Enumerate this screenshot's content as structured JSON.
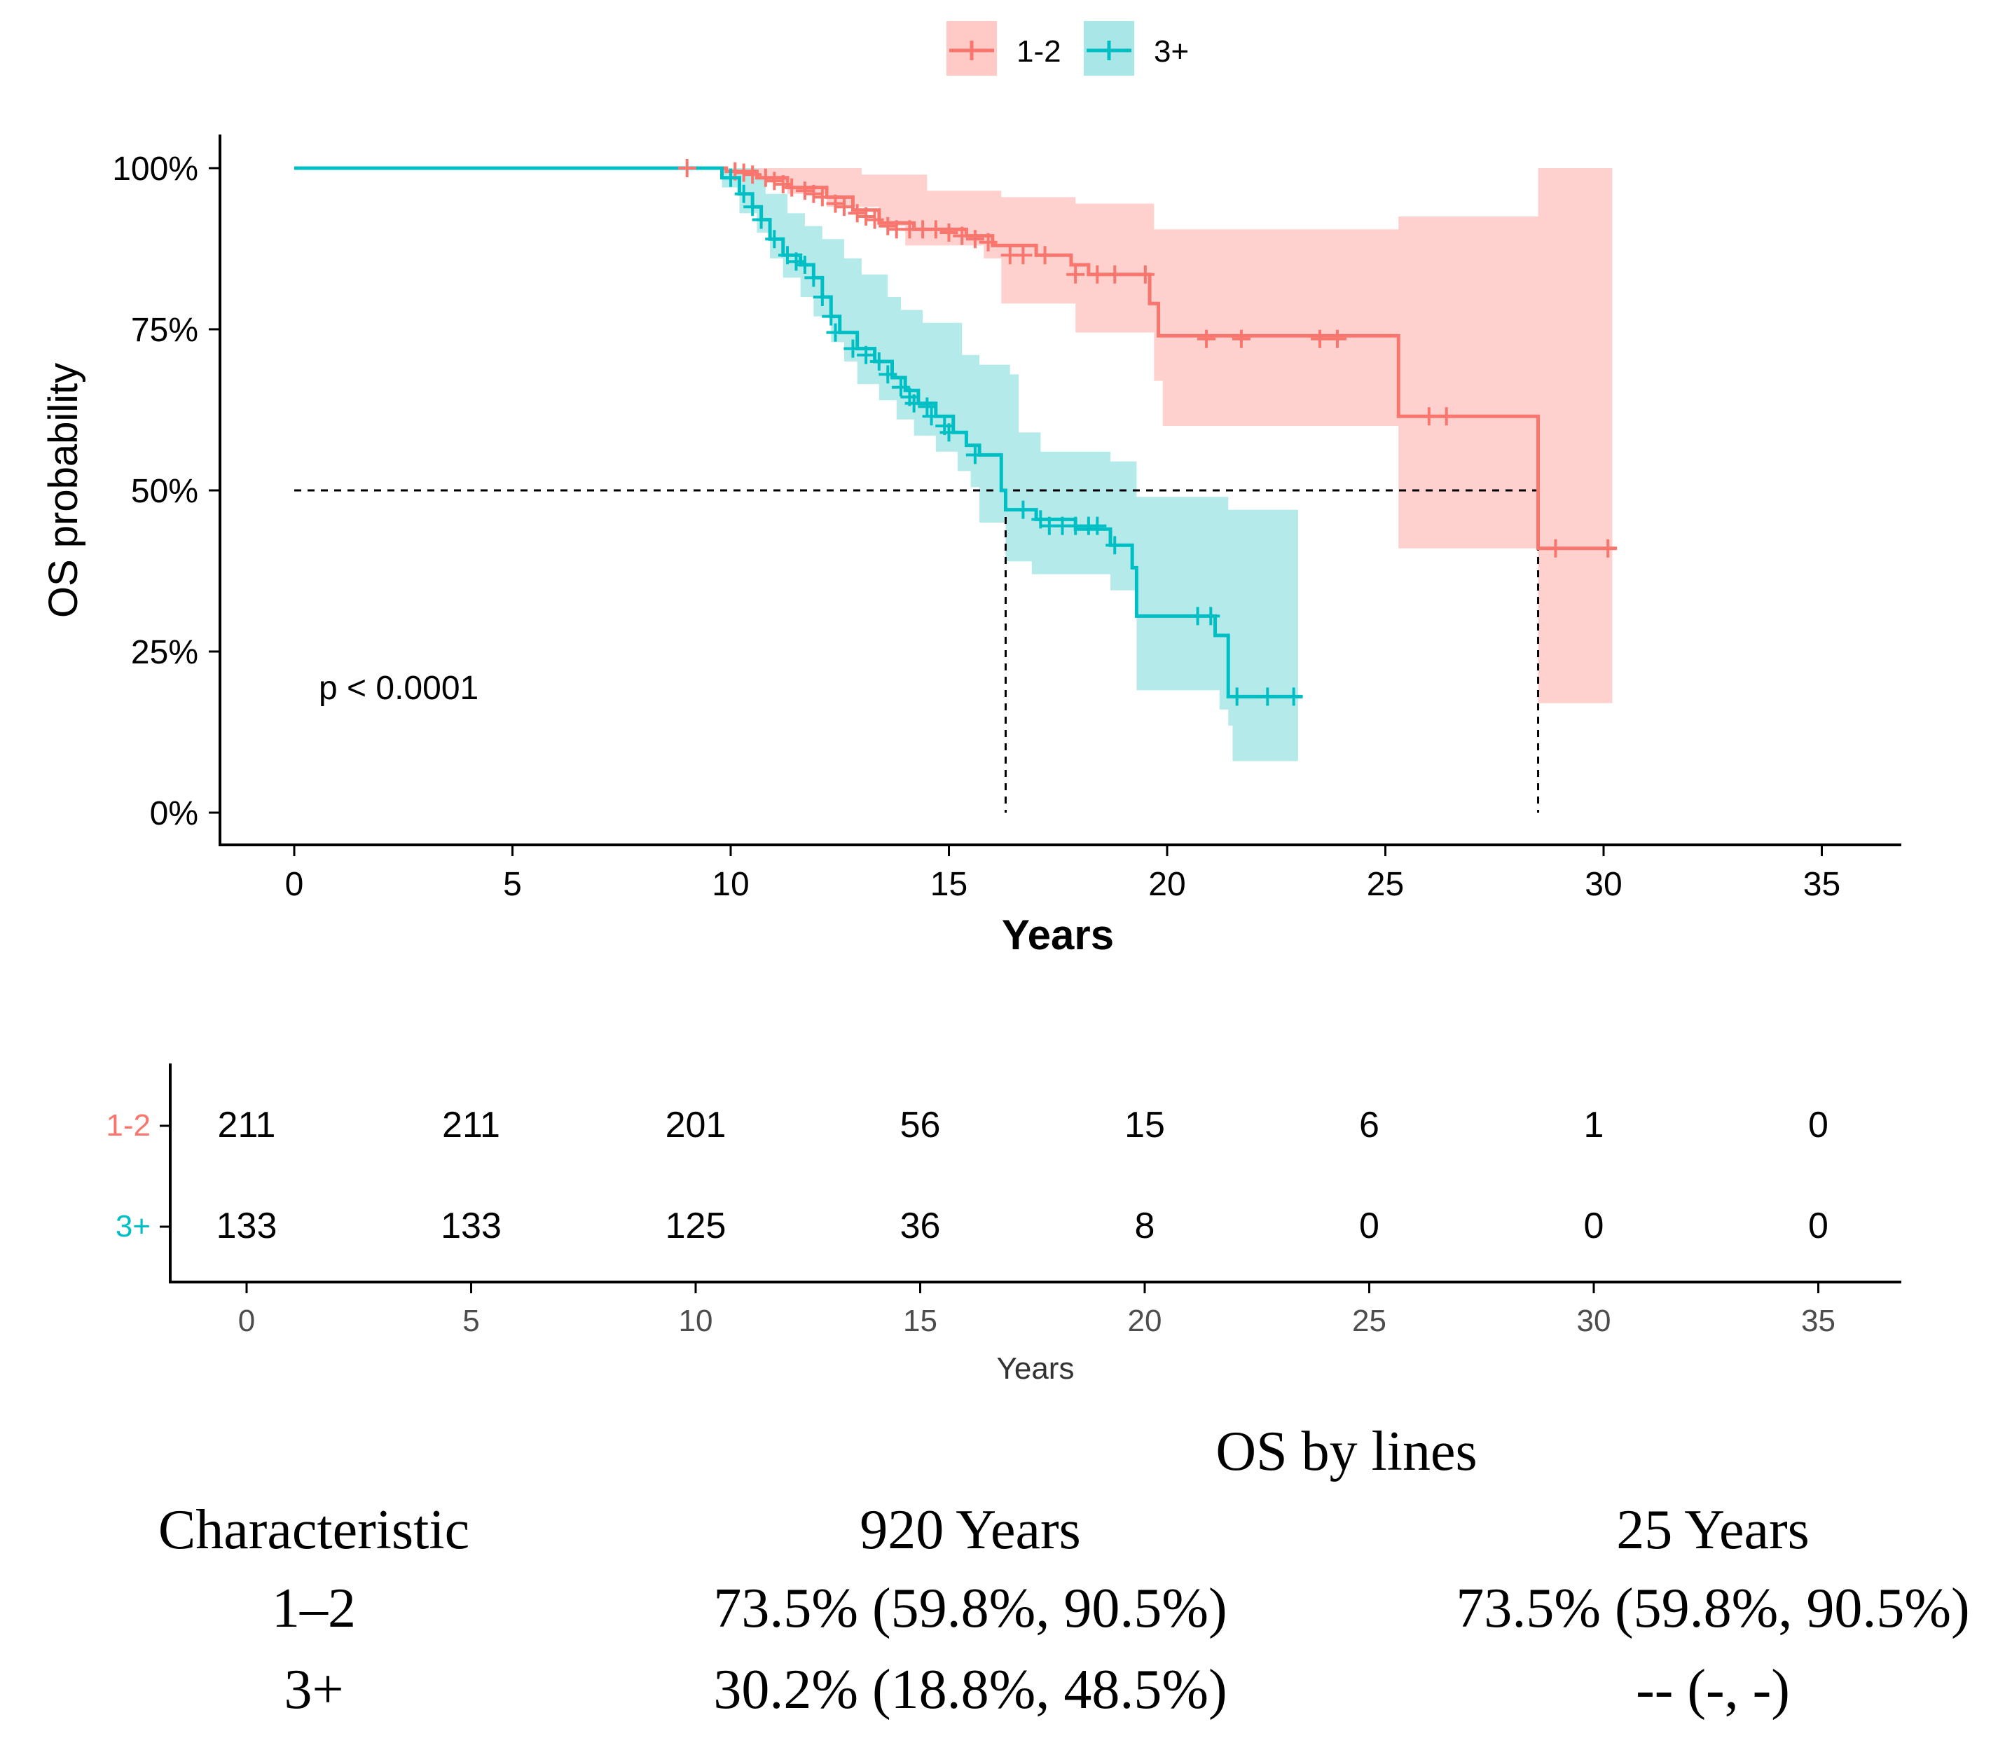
{
  "colors": {
    "group_a": "#F8766D",
    "group_b": "#00BFC4",
    "band_a": "#FFC9C6",
    "band_b": "#A8E6E8",
    "axis": "#000000",
    "risk_tick": "#4D4D4D"
  },
  "chart_data": {
    "type": "line",
    "subtype": "kaplan-meier",
    "title": "",
    "xlabel": "Years",
    "ylabel": "OS probability",
    "xlim": [
      0,
      35
    ],
    "ylim": [
      0,
      1
    ],
    "x_ticks": [
      "0",
      "5",
      "10",
      "15",
      "20",
      "25",
      "30",
      "35"
    ],
    "y_ticks": [
      "0%",
      "25%",
      "50%",
      "75%",
      "100%"
    ],
    "legend_position": "top",
    "annotation": "p < 0.0001",
    "median_line": {
      "y": 0.5,
      "x": [
        16.3,
        28.5
      ]
    },
    "series": [
      {
        "name": "1-2",
        "steps": [
          [
            0,
            1.0
          ],
          [
            9.9,
            0.995
          ],
          [
            10.6,
            0.985
          ],
          [
            11.3,
            0.97
          ],
          [
            12.2,
            0.955
          ],
          [
            12.8,
            0.935
          ],
          [
            13.4,
            0.915
          ],
          [
            14.2,
            0.905
          ],
          [
            15.4,
            0.895
          ],
          [
            16.0,
            0.88
          ],
          [
            17.0,
            0.865
          ],
          [
            17.8,
            0.85
          ],
          [
            18.2,
            0.835
          ],
          [
            19.6,
            0.79
          ],
          [
            19.8,
            0.74
          ],
          [
            25.3,
            0.615
          ],
          [
            28.5,
            0.41
          ],
          [
            30.3,
            0.41
          ]
        ],
        "lower": [
          [
            9.9,
            1.0
          ],
          [
            10.6,
            0.98
          ],
          [
            11.3,
            0.96
          ],
          [
            12.2,
            0.94
          ],
          [
            13.4,
            0.91
          ],
          [
            14.0,
            0.88
          ],
          [
            15.8,
            0.86
          ],
          [
            16.2,
            0.79
          ],
          [
            17.9,
            0.745
          ],
          [
            19.7,
            0.67
          ],
          [
            19.9,
            0.6
          ],
          [
            25.3,
            0.41
          ],
          [
            28.5,
            0.17
          ],
          [
            30.2,
            0.17
          ]
        ],
        "upper": [
          [
            9.9,
            1.0
          ],
          [
            13.0,
            0.99
          ],
          [
            14.5,
            0.965
          ],
          [
            16.2,
            0.955
          ],
          [
            17.9,
            0.945
          ],
          [
            19.7,
            0.905
          ],
          [
            25.3,
            0.925
          ],
          [
            28.5,
            1.0
          ],
          [
            30.2,
            1.0
          ]
        ],
        "censors": [
          [
            9.0,
            1.0
          ],
          [
            10.1,
            0.995
          ],
          [
            10.3,
            0.993
          ],
          [
            10.5,
            0.99
          ],
          [
            10.8,
            0.985
          ],
          [
            11.0,
            0.98
          ],
          [
            11.2,
            0.975
          ],
          [
            11.4,
            0.97
          ],
          [
            11.7,
            0.965
          ],
          [
            11.9,
            0.96
          ],
          [
            12.1,
            0.955
          ],
          [
            12.4,
            0.945
          ],
          [
            12.6,
            0.94
          ],
          [
            12.9,
            0.93
          ],
          [
            13.1,
            0.925
          ],
          [
            13.3,
            0.92
          ],
          [
            13.6,
            0.91
          ],
          [
            13.8,
            0.905
          ],
          [
            14.1,
            0.905
          ],
          [
            14.4,
            0.905
          ],
          [
            14.7,
            0.905
          ],
          [
            15.0,
            0.9
          ],
          [
            15.3,
            0.895
          ],
          [
            15.6,
            0.89
          ],
          [
            15.9,
            0.885
          ],
          [
            16.4,
            0.865
          ],
          [
            16.7,
            0.865
          ],
          [
            17.2,
            0.865
          ],
          [
            17.9,
            0.835
          ],
          [
            18.4,
            0.835
          ],
          [
            18.8,
            0.835
          ],
          [
            19.5,
            0.835
          ],
          [
            20.9,
            0.735
          ],
          [
            21.7,
            0.735
          ],
          [
            23.5,
            0.735
          ],
          [
            23.9,
            0.735
          ],
          [
            26.0,
            0.615
          ],
          [
            26.4,
            0.615
          ],
          [
            28.9,
            0.41
          ],
          [
            30.1,
            0.41
          ]
        ]
      },
      {
        "name": "3+",
        "steps": [
          [
            0,
            1.0
          ],
          [
            9.5,
            1.0
          ],
          [
            9.8,
            0.985
          ],
          [
            10.2,
            0.96
          ],
          [
            10.5,
            0.94
          ],
          [
            10.7,
            0.92
          ],
          [
            10.9,
            0.89
          ],
          [
            11.2,
            0.865
          ],
          [
            11.6,
            0.85
          ],
          [
            11.9,
            0.83
          ],
          [
            12.1,
            0.8
          ],
          [
            12.3,
            0.77
          ],
          [
            12.5,
            0.745
          ],
          [
            12.9,
            0.72
          ],
          [
            13.3,
            0.7
          ],
          [
            13.7,
            0.675
          ],
          [
            14.0,
            0.655
          ],
          [
            14.3,
            0.635
          ],
          [
            14.7,
            0.615
          ],
          [
            15.1,
            0.59
          ],
          [
            15.4,
            0.57
          ],
          [
            15.7,
            0.555
          ],
          [
            16.2,
            0.5
          ],
          [
            16.3,
            0.47
          ],
          [
            17.0,
            0.455
          ],
          [
            17.9,
            0.44
          ],
          [
            18.7,
            0.415
          ],
          [
            19.2,
            0.38
          ],
          [
            19.3,
            0.305
          ],
          [
            21.1,
            0.275
          ],
          [
            21.4,
            0.18
          ],
          [
            23.1,
            0.18
          ]
        ],
        "lower": [
          [
            9.8,
            0.97
          ],
          [
            10.2,
            0.93
          ],
          [
            10.6,
            0.9
          ],
          [
            10.9,
            0.86
          ],
          [
            11.2,
            0.83
          ],
          [
            11.6,
            0.8
          ],
          [
            11.9,
            0.77
          ],
          [
            12.3,
            0.73
          ],
          [
            12.6,
            0.7
          ],
          [
            12.9,
            0.665
          ],
          [
            13.4,
            0.64
          ],
          [
            13.8,
            0.61
          ],
          [
            14.2,
            0.585
          ],
          [
            14.7,
            0.56
          ],
          [
            15.2,
            0.53
          ],
          [
            15.5,
            0.505
          ],
          [
            15.7,
            0.45
          ],
          [
            16.3,
            0.39
          ],
          [
            16.9,
            0.37
          ],
          [
            18.7,
            0.345
          ],
          [
            19.3,
            0.275
          ],
          [
            19.3,
            0.19
          ],
          [
            21.2,
            0.16
          ],
          [
            21.4,
            0.135
          ],
          [
            21.5,
            0.08
          ],
          [
            23.0,
            0.08
          ]
        ],
        "upper": [
          [
            9.8,
            1.0
          ],
          [
            10.6,
            0.985
          ],
          [
            10.8,
            0.96
          ],
          [
            11.3,
            0.93
          ],
          [
            11.7,
            0.91
          ],
          [
            12.1,
            0.89
          ],
          [
            12.6,
            0.86
          ],
          [
            13.0,
            0.835
          ],
          [
            13.6,
            0.8
          ],
          [
            13.9,
            0.78
          ],
          [
            14.4,
            0.76
          ],
          [
            15.3,
            0.71
          ],
          [
            15.7,
            0.695
          ],
          [
            16.4,
            0.68
          ],
          [
            16.6,
            0.59
          ],
          [
            17.1,
            0.56
          ],
          [
            18.7,
            0.545
          ],
          [
            19.3,
            0.49
          ],
          [
            21.2,
            0.49
          ],
          [
            21.4,
            0.47
          ],
          [
            23.0,
            0.43
          ]
        ],
        "censors": [
          [
            10.0,
            0.985
          ],
          [
            10.3,
            0.96
          ],
          [
            10.5,
            0.94
          ],
          [
            10.7,
            0.92
          ],
          [
            11.0,
            0.89
          ],
          [
            11.3,
            0.865
          ],
          [
            11.5,
            0.855
          ],
          [
            11.7,
            0.85
          ],
          [
            11.9,
            0.83
          ],
          [
            12.1,
            0.8
          ],
          [
            12.3,
            0.77
          ],
          [
            12.4,
            0.745
          ],
          [
            12.8,
            0.72
          ],
          [
            13.1,
            0.71
          ],
          [
            13.4,
            0.7
          ],
          [
            13.6,
            0.68
          ],
          [
            13.9,
            0.66
          ],
          [
            14.1,
            0.645
          ],
          [
            14.2,
            0.635
          ],
          [
            14.5,
            0.63
          ],
          [
            14.6,
            0.615
          ],
          [
            14.9,
            0.6
          ],
          [
            15.0,
            0.59
          ],
          [
            15.6,
            0.555
          ],
          [
            16.7,
            0.47
          ],
          [
            17.1,
            0.455
          ],
          [
            17.3,
            0.445
          ],
          [
            17.6,
            0.445
          ],
          [
            17.9,
            0.445
          ],
          [
            18.2,
            0.445
          ],
          [
            18.4,
            0.445
          ],
          [
            18.8,
            0.415
          ],
          [
            20.7,
            0.305
          ],
          [
            21.0,
            0.305
          ],
          [
            21.6,
            0.18
          ],
          [
            22.3,
            0.18
          ],
          [
            22.9,
            0.18
          ]
        ]
      }
    ],
    "risk_table": {
      "xlabel": "Years",
      "x_ticks": [
        "0",
        "5",
        "10",
        "15",
        "20",
        "25",
        "30",
        "35"
      ],
      "rows": [
        {
          "name": "1-2",
          "values": [
            "211",
            "211",
            "201",
            "56",
            "15",
            "6",
            "1",
            "0"
          ]
        },
        {
          "name": "3+",
          "values": [
            "133",
            "133",
            "125",
            "36",
            "8",
            "0",
            "0",
            "0"
          ]
        }
      ]
    }
  },
  "summary_table": {
    "title": "OS by lines",
    "headers": [
      "Characteristic",
      "920 Years",
      "25 Years"
    ],
    "rows": [
      [
        "1–2",
        "73.5% (59.8%, 90.5%)",
        "73.5% (59.8%, 90.5%)"
      ],
      [
        "3+",
        "30.2% (18.8%, 48.5%)",
        "-- (-, -)"
      ]
    ]
  }
}
